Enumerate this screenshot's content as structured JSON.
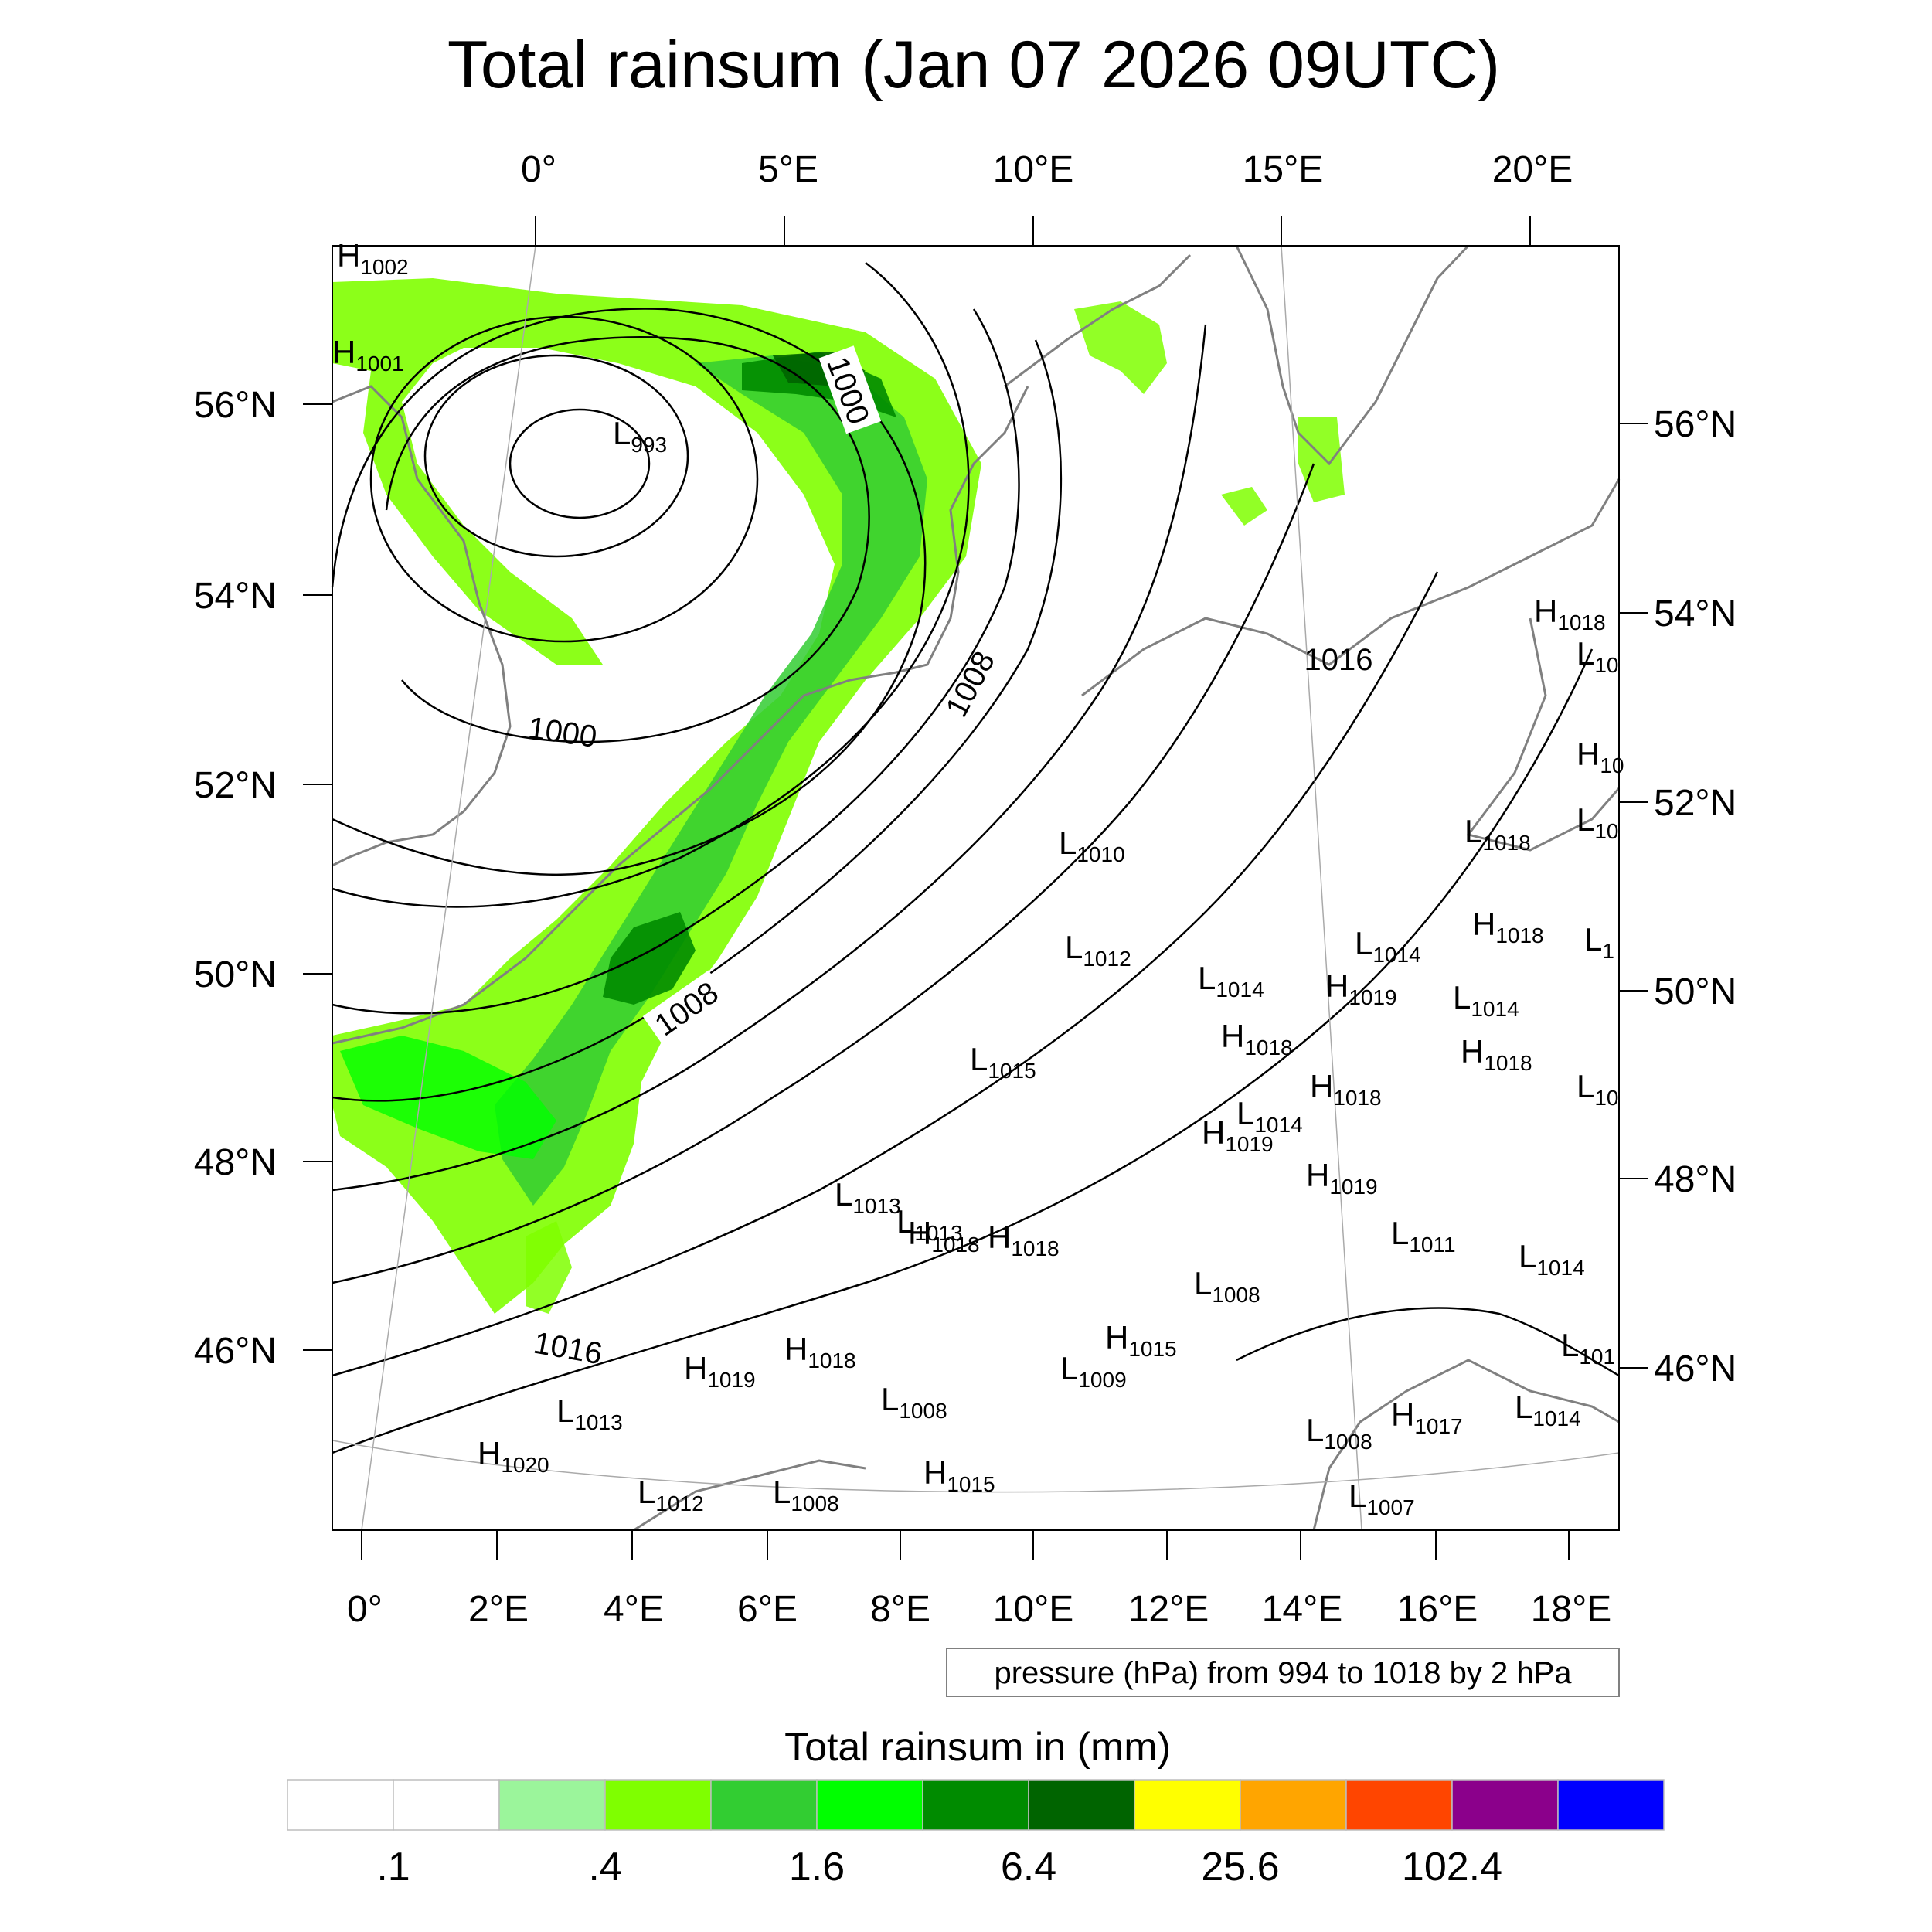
{
  "title": "Total rainsum (Jan 07 2026 09UTC)",
  "top_lon_labels": [
    "0°",
    "5°E",
    "10°E",
    "15°E",
    "20°E"
  ],
  "bottom_lon_labels": [
    "0°",
    "2°E",
    "4°E",
    "6°E",
    "8°E",
    "10°E",
    "12°E",
    "14°E",
    "16°E",
    "18°E"
  ],
  "left_lat_labels": [
    "56°N",
    "54°N",
    "52°N",
    "50°N",
    "48°N",
    "46°N"
  ],
  "right_lat_labels": [
    "56°N",
    "54°N",
    "52°N",
    "50°N",
    "48°N",
    "46°N"
  ],
  "isobar_labels": [
    "1000",
    "1000",
    "1008",
    "1008",
    "1016",
    "1016"
  ],
  "pressure_centers": [
    {
      "type": "H",
      "value": "1002"
    },
    {
      "type": "H",
      "value": "1001"
    },
    {
      "type": "L",
      "value": "993"
    },
    {
      "type": "H",
      "value": "1018"
    },
    {
      "type": "L",
      "value": "10"
    },
    {
      "type": "H",
      "value": "10"
    },
    {
      "type": "L",
      "value": "1018"
    },
    {
      "type": "L",
      "value": "10"
    },
    {
      "type": "L",
      "value": "1010"
    },
    {
      "type": "L",
      "value": "1012"
    },
    {
      "type": "L",
      "value": "1014"
    },
    {
      "type": "L",
      "value": "1014"
    },
    {
      "type": "H",
      "value": "1019"
    },
    {
      "type": "H",
      "value": "1018"
    },
    {
      "type": "L",
      "value": "1"
    },
    {
      "type": "L",
      "value": "1014"
    },
    {
      "type": "H",
      "value": "1018"
    },
    {
      "type": "H",
      "value": "1018"
    },
    {
      "type": "L",
      "value": "1015"
    },
    {
      "type": "H",
      "value": "1018"
    },
    {
      "type": "L",
      "value": "1014"
    },
    {
      "type": "L",
      "value": "10"
    },
    {
      "type": "H",
      "value": "1019"
    },
    {
      "type": "H",
      "value": "1019"
    },
    {
      "type": "L",
      "value": "1013"
    },
    {
      "type": "L",
      "value": "1013"
    },
    {
      "type": "H",
      "value": "1018"
    },
    {
      "type": "H",
      "value": "1018"
    },
    {
      "type": "L",
      "value": "1011"
    },
    {
      "type": "L",
      "value": "1014"
    },
    {
      "type": "L",
      "value": "1008"
    },
    {
      "type": "H",
      "value": "1015"
    },
    {
      "type": "H",
      "value": "1019"
    },
    {
      "type": "H",
      "value": "1018"
    },
    {
      "type": "L",
      "value": "1009"
    },
    {
      "type": "L",
      "value": "101"
    },
    {
      "type": "L",
      "value": "1013"
    },
    {
      "type": "L",
      "value": "1008"
    },
    {
      "type": "H",
      "value": "1017"
    },
    {
      "type": "L",
      "value": "1014"
    },
    {
      "type": "L",
      "value": "1008"
    },
    {
      "type": "H",
      "value": "1020"
    },
    {
      "type": "H",
      "value": "1015"
    },
    {
      "type": "L",
      "value": "1012"
    },
    {
      "type": "L",
      "value": "1008"
    },
    {
      "type": "L",
      "value": "1007"
    }
  ],
  "contour_info": "pressure (hPa) from 994 to 1018 by 2 hPa",
  "legend": {
    "title": "Total rainsum in (mm)",
    "colors": [
      "#ffffff",
      "#ffffff",
      "#9bf59b",
      "#7fff00",
      "#32cd32",
      "#00ff00",
      "#008b00",
      "#006400",
      "#ffff00",
      "#ffa500",
      "#ff4500",
      "#8b008b",
      "#0000ff"
    ],
    "tick_labels": [
      ".1",
      ".4",
      "1.6",
      "6.4",
      "25.6",
      "102.4"
    ]
  }
}
